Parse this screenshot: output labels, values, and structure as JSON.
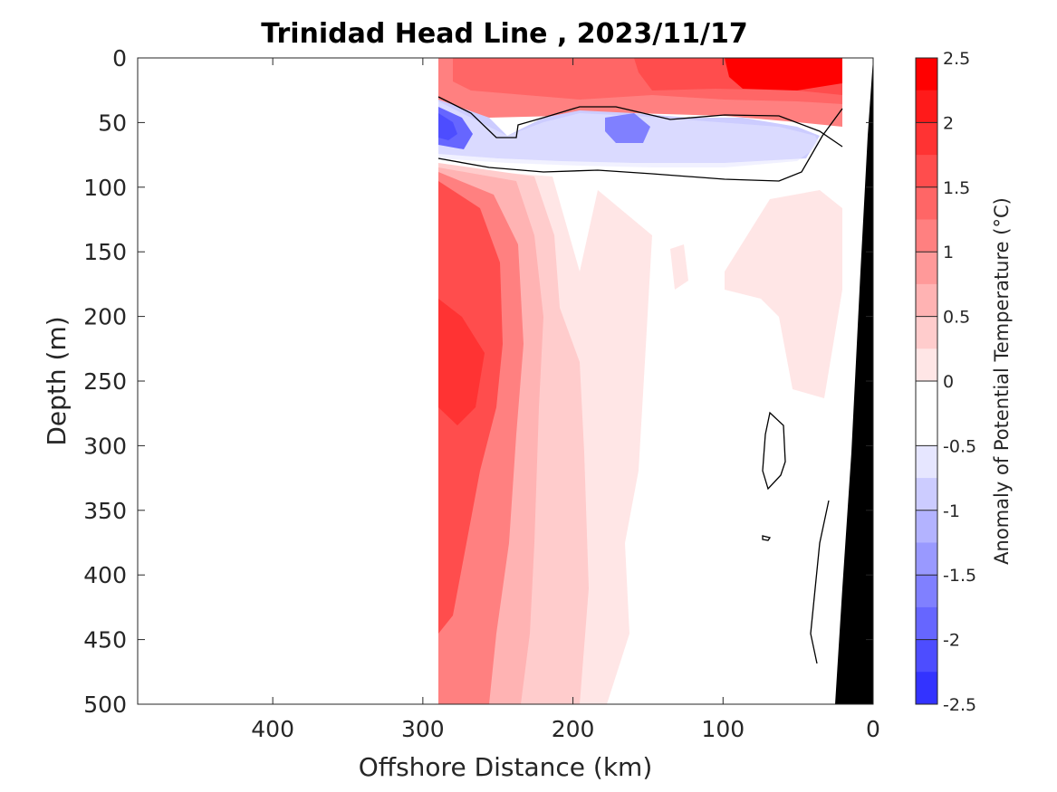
{
  "chart_data": {
    "type": "heatmap",
    "title": "Trinidad Head Line , 2023/11/17",
    "xlabel": "Offshore Distance (km)",
    "ylabel": "Depth (m)",
    "xlim": [
      490,
      0
    ],
    "ylim": [
      0,
      500
    ],
    "x_ticks": [
      400,
      300,
      200,
      100,
      0
    ],
    "y_ticks": [
      0,
      50,
      100,
      150,
      200,
      250,
      300,
      350,
      400,
      450,
      500
    ],
    "colorbar": {
      "label": "Anomaly of Potential Temperature (°C)",
      "range": [
        -2.5,
        2.5
      ],
      "ticks": [
        2.5,
        2,
        1.5,
        1,
        0.5,
        0,
        -0.5,
        -1,
        -1.5,
        -2,
        -2.5
      ],
      "levels": [
        {
          "value": 2.375,
          "color": "#ff0000"
        },
        {
          "value": 2.125,
          "color": "#ff1a1a"
        },
        {
          "value": 1.875,
          "color": "#ff3333"
        },
        {
          "value": 1.625,
          "color": "#ff4d4d"
        },
        {
          "value": 1.375,
          "color": "#ff6666"
        },
        {
          "value": 1.125,
          "color": "#ff8080"
        },
        {
          "value": 0.875,
          "color": "#ff9999"
        },
        {
          "value": 0.625,
          "color": "#ffb3b3"
        },
        {
          "value": 0.375,
          "color": "#ffcccc"
        },
        {
          "value": 0.125,
          "color": "#ffe6e6"
        },
        {
          "value": -0.125,
          "color": "#ffffff"
        },
        {
          "value": -0.375,
          "color": "#ffffff"
        },
        {
          "value": -0.625,
          "color": "#e6e6ff"
        },
        {
          "value": -0.875,
          "color": "#ccccff"
        },
        {
          "value": -1.125,
          "color": "#b3b3ff"
        },
        {
          "value": -1.375,
          "color": "#9999ff"
        },
        {
          "value": -1.625,
          "color": "#8080ff"
        },
        {
          "value": -1.875,
          "color": "#6666ff"
        },
        {
          "value": -2.125,
          "color": "#4d4dff"
        },
        {
          "value": -2.375,
          "color": "#3333ff"
        },
        {
          "value": -2.5,
          "color": "#0000ff"
        }
      ]
    },
    "data_extent_km": [
      290,
      0
    ],
    "regions": [
      {
        "name": "deep-band-1",
        "anomaly": 0.125,
        "color": "#ffe6e6",
        "x": [
          290,
          175
        ],
        "y": [
          80,
          500
        ]
      },
      {
        "name": "deep-band-2",
        "anomaly": 0.375,
        "color": "#ffcccc",
        "x": [
          290,
          215
        ],
        "y": [
          80,
          500
        ]
      },
      {
        "name": "deep-band-3",
        "anomaly": 0.625,
        "color": "#ffb3b3",
        "x": [
          290,
          245
        ],
        "y": [
          80,
          500
        ]
      },
      {
        "name": "deep-band-4",
        "anomaly": 1.125,
        "color": "#ff8080",
        "x": [
          290,
          262
        ],
        "y": [
          80,
          500
        ]
      },
      {
        "name": "deep-core",
        "anomaly": 1.625,
        "color": "#ff4d4d",
        "x": [
          290,
          272
        ],
        "y": [
          110,
          420
        ]
      },
      {
        "name": "deep-core-max",
        "anomaly": 1.875,
        "color": "#ff3333",
        "x": [
          290,
          275
        ],
        "y": [
          200,
          290
        ]
      },
      {
        "name": "surface-warm",
        "anomaly": 1.125,
        "color": "#ff8080",
        "x": [
          290,
          22
        ],
        "y": [
          0,
          45
        ]
      },
      {
        "name": "surface-warm-2",
        "anomaly": 1.375,
        "color": "#ff6666",
        "x": [
          240,
          22
        ],
        "y": [
          0,
          28
        ]
      },
      {
        "name": "surface-max",
        "anomaly": 2.375,
        "color": "#ff0000",
        "x": [
          110,
          22
        ],
        "y": [
          0,
          22
        ]
      },
      {
        "name": "subsurface-cold",
        "anomaly": -0.875,
        "color": "#ccccff",
        "x": [
          290,
          40
        ],
        "y": [
          45,
          85
        ]
      },
      {
        "name": "cold-core-west",
        "anomaly": -1.875,
        "color": "#6666ff",
        "x": [
          290,
          275
        ],
        "y": [
          45,
          70
        ]
      },
      {
        "name": "cold-core-mid",
        "anomaly": -1.625,
        "color": "#8080ff",
        "x": [
          175,
          145
        ],
        "y": [
          45,
          70
        ]
      },
      {
        "name": "offshore-warm-patch",
        "anomaly": 0.125,
        "color": "#ffe6e6",
        "x": [
          120,
          25
        ],
        "y": [
          100,
          260
        ]
      }
    ]
  }
}
